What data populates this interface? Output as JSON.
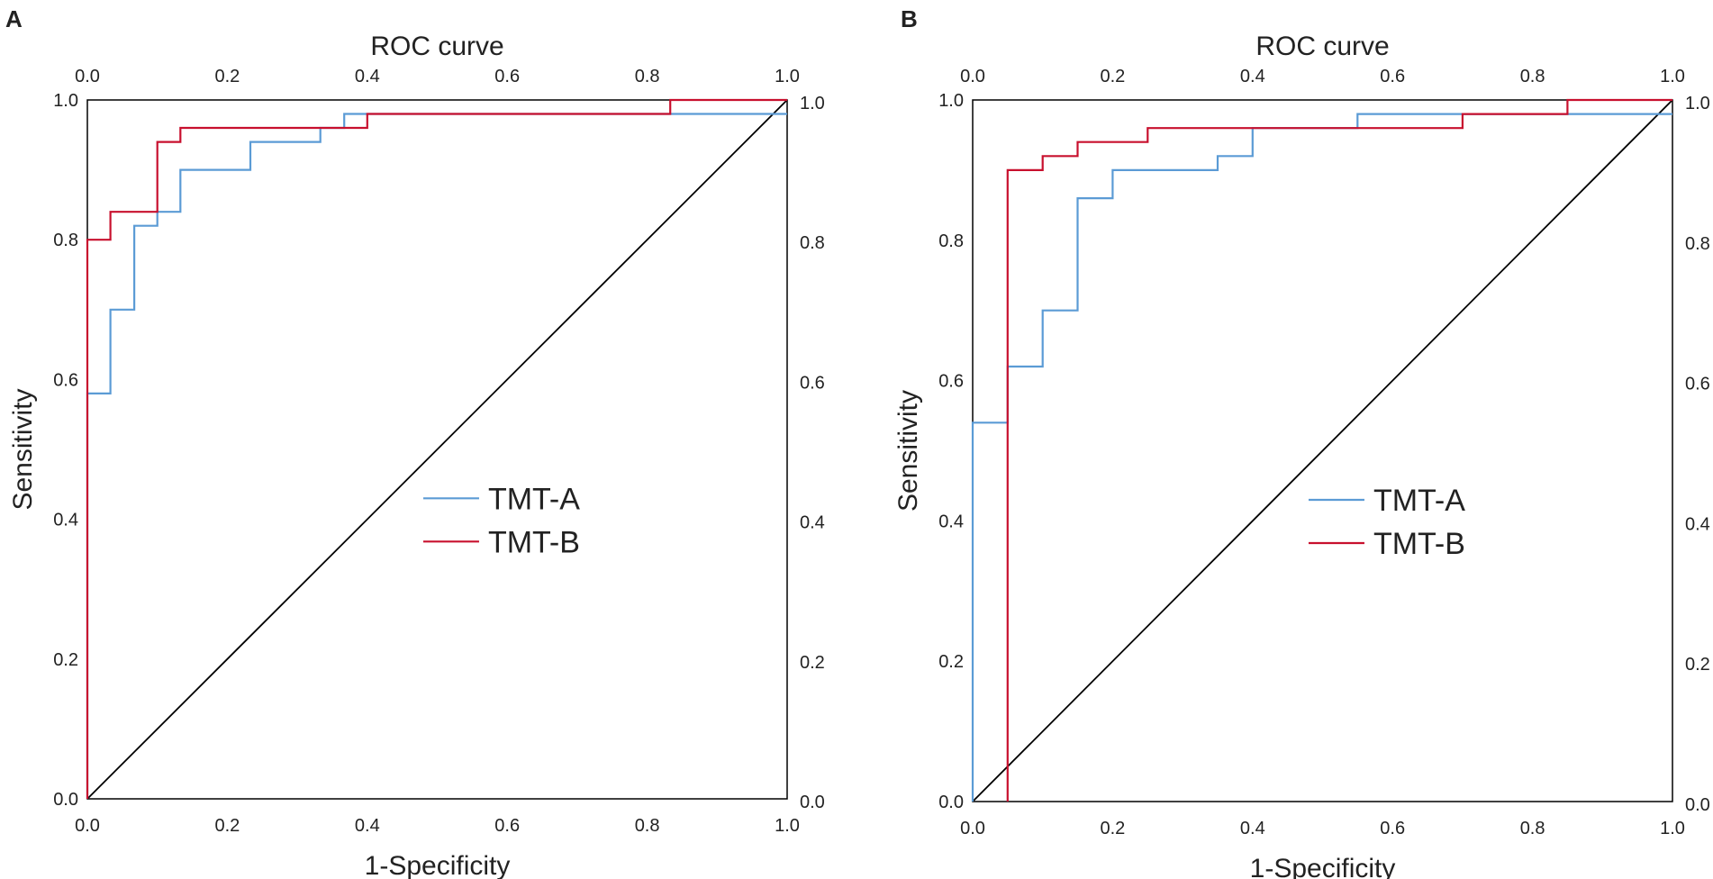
{
  "chart_data": [
    {
      "type": "line",
      "panel": "A",
      "title": "ROC curve",
      "xlabel": "1-Specificity",
      "ylabel": "Sensitivity",
      "xlim": [
        0,
        1
      ],
      "ylim": [
        0,
        1
      ],
      "x_ticks": [
        "0.0",
        "0.2",
        "0.4",
        "0.6",
        "0.8",
        "1.0"
      ],
      "y_ticks": [
        "0.0",
        "0.2",
        "0.4",
        "0.6",
        "0.8",
        "1.0"
      ],
      "legend_position": "bottom-right",
      "series": [
        {
          "name": "TMT-A",
          "color": "#5b9bd5",
          "x": [
            0,
            0,
            0.033,
            0.033,
            0.067,
            0.067,
            0.1,
            0.1,
            0.133,
            0.133,
            0.233,
            0.233,
            0.333,
            0.333,
            0.367,
            0.367,
            1.0
          ],
          "y": [
            0,
            0.58,
            0.58,
            0.7,
            0.7,
            0.82,
            0.82,
            0.84,
            0.84,
            0.9,
            0.9,
            0.94,
            0.94,
            0.96,
            0.96,
            0.98,
            0.98
          ]
        },
        {
          "name": "TMT-B",
          "color": "#c8102e",
          "x": [
            0,
            0,
            0.033,
            0.033,
            0.1,
            0.1,
            0.133,
            0.133,
            0.4,
            0.4,
            0.833,
            0.833,
            1.0
          ],
          "y": [
            0,
            0.8,
            0.8,
            0.84,
            0.84,
            0.94,
            0.94,
            0.96,
            0.96,
            0.98,
            0.98,
            1.0,
            1.0
          ]
        },
        {
          "name": "Reference line",
          "color": "#000000",
          "x": [
            0,
            1
          ],
          "y": [
            0,
            1
          ]
        }
      ]
    },
    {
      "type": "line",
      "panel": "B",
      "title": "ROC curve",
      "xlabel": "1-Specificity",
      "ylabel": "Sensitivity",
      "xlim": [
        0,
        1
      ],
      "ylim": [
        0,
        1
      ],
      "x_ticks": [
        "0.0",
        "0.2",
        "0.4",
        "0.6",
        "0.8",
        "1.0"
      ],
      "y_ticks": [
        "0.0",
        "0.2",
        "0.4",
        "0.6",
        "0.8",
        "1.0"
      ],
      "legend_position": "bottom-right",
      "series": [
        {
          "name": "TMT-A",
          "color": "#5b9bd5",
          "x": [
            0,
            0,
            0.05,
            0.05,
            0.1,
            0.1,
            0.15,
            0.15,
            0.2,
            0.2,
            0.35,
            0.35,
            0.4,
            0.4,
            0.55,
            0.55,
            1.0
          ],
          "y": [
            0,
            0.54,
            0.54,
            0.62,
            0.62,
            0.7,
            0.7,
            0.86,
            0.86,
            0.9,
            0.9,
            0.92,
            0.92,
            0.96,
            0.96,
            0.98,
            0.98
          ]
        },
        {
          "name": "TMT-B",
          "color": "#c8102e",
          "x": [
            0.05,
            0.05,
            0.1,
            0.1,
            0.15,
            0.15,
            0.25,
            0.25,
            0.7,
            0.7,
            0.85,
            0.85,
            1.0
          ],
          "y": [
            0,
            0.9,
            0.9,
            0.92,
            0.92,
            0.94,
            0.94,
            0.96,
            0.96,
            0.98,
            0.98,
            1.0,
            1.0
          ]
        },
        {
          "name": "Reference line",
          "color": "#000000",
          "x": [
            0,
            1
          ],
          "y": [
            0,
            1
          ]
        }
      ]
    }
  ]
}
